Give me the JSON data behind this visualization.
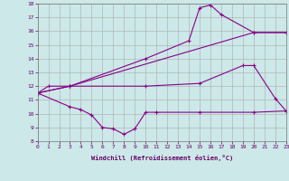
{
  "xlabel": "Windchill (Refroidissement éolien,°C)",
  "ylabel": "",
  "background_color": "#cce8e8",
  "grid_color": "#aaaaaa",
  "line_color": "#880088",
  "xlim": [
    0,
    23
  ],
  "ylim": [
    8,
    18
  ],
  "xticks": [
    0,
    1,
    2,
    3,
    4,
    5,
    6,
    7,
    8,
    9,
    10,
    11,
    12,
    13,
    14,
    15,
    16,
    17,
    18,
    19,
    20,
    21,
    22,
    23
  ],
  "yticks": [
    8,
    9,
    10,
    11,
    12,
    13,
    14,
    15,
    16,
    17,
    18
  ],
  "series": [
    {
      "x": [
        0,
        1,
        3,
        20,
        23
      ],
      "y": [
        11.5,
        12.0,
        12.0,
        15.9,
        15.9
      ],
      "marker": "+"
    },
    {
      "x": [
        0,
        3,
        10,
        14,
        15,
        16,
        17,
        20,
        23
      ],
      "y": [
        11.5,
        12.0,
        14.0,
        15.3,
        17.7,
        17.9,
        17.2,
        15.9,
        15.9
      ],
      "marker": "+"
    },
    {
      "x": [
        0,
        3,
        10,
        15,
        19,
        20,
        22,
        23
      ],
      "y": [
        11.5,
        12.0,
        12.0,
        12.2,
        13.5,
        13.5,
        11.1,
        10.2
      ],
      "marker": "+"
    },
    {
      "x": [
        0,
        3,
        4,
        5,
        6,
        7,
        8,
        9,
        10,
        11,
        15,
        20,
        23
      ],
      "y": [
        11.5,
        10.5,
        10.3,
        9.9,
        9.0,
        8.9,
        8.5,
        8.9,
        10.1,
        10.1,
        10.1,
        10.1,
        10.2
      ],
      "marker": "+"
    }
  ]
}
